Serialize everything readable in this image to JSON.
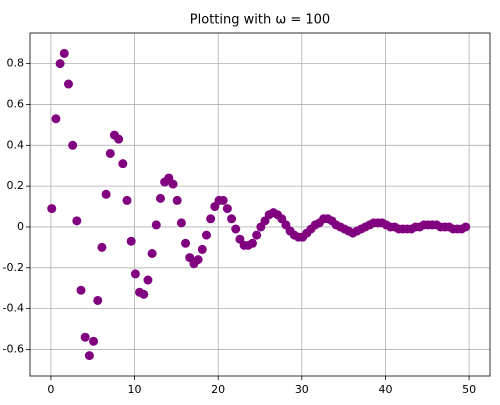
{
  "chart_data": {
    "type": "scatter",
    "title": "Plotting with ω = 100",
    "x": [
      0.1,
      0.6,
      1.1,
      1.6,
      2.1,
      2.6,
      3.1,
      3.6,
      4.1,
      4.6,
      5.1,
      5.6,
      6.1,
      6.6,
      7.1,
      7.6,
      8.1,
      8.6,
      9.1,
      9.6,
      10.1,
      10.6,
      11.1,
      11.6,
      12.1,
      12.6,
      13.1,
      13.6,
      14.1,
      14.6,
      15.1,
      15.6,
      16.1,
      16.6,
      17.1,
      17.6,
      18.1,
      18.6,
      19.1,
      19.6,
      20.1,
      20.6,
      21.1,
      21.6,
      22.1,
      22.6,
      23.1,
      23.6,
      24.1,
      24.6,
      25.1,
      25.6,
      26.1,
      26.6,
      27.1,
      27.6,
      28.1,
      28.6,
      29.1,
      29.6,
      30.1,
      30.6,
      31.1,
      31.6,
      32.1,
      32.6,
      33.1,
      33.6,
      34.1,
      34.6,
      35.1,
      35.6,
      36.1,
      36.6,
      37.1,
      37.6,
      38.1,
      38.6,
      39.1,
      39.6,
      40.1,
      40.6,
      41.1,
      41.6,
      42.1,
      42.6,
      43.1,
      43.6,
      44.1,
      44.6,
      45.1,
      45.6,
      46.1,
      46.6,
      47.1,
      47.6,
      48.1,
      48.6,
      49.1,
      49.6
    ],
    "values": [
      0.09,
      0.53,
      0.8,
      0.85,
      0.7,
      0.4,
      0.03,
      -0.31,
      -0.54,
      -0.63,
      -0.56,
      -0.36,
      -0.1,
      0.16,
      0.36,
      0.45,
      0.43,
      0.31,
      0.13,
      -0.07,
      -0.23,
      -0.32,
      -0.33,
      -0.26,
      -0.13,
      0.01,
      0.14,
      0.22,
      0.24,
      0.21,
      0.13,
      0.02,
      -0.08,
      -0.15,
      -0.18,
      -0.16,
      -0.11,
      -0.04,
      0.04,
      0.1,
      0.13,
      0.13,
      0.09,
      0.04,
      -0.01,
      -0.06,
      -0.09,
      -0.09,
      -0.08,
      -0.04,
      0,
      0.03,
      0.06,
      0.07,
      0.06,
      0.04,
      0.01,
      -0.02,
      -0.04,
      -0.05,
      -0.05,
      -0.03,
      -0.01,
      0.01,
      0.02,
      0.04,
      0.04,
      0.03,
      0.01,
      0,
      -0.01,
      -0.02,
      -0.03,
      -0.02,
      -0.01,
      0,
      0.01,
      0.02,
      0.02,
      0.02,
      0.01,
      0,
      0,
      -0.01,
      -0.01,
      -0.01,
      -0.01,
      0,
      0,
      0.01,
      0.01,
      0.01,
      0.01,
      0,
      0,
      0,
      -0.01,
      -0.01,
      -0.01,
      0
    ],
    "color": "#800080",
    "xlim": [
      -2.5,
      52.5
    ],
    "xticks": [
      0,
      10,
      20,
      30,
      40,
      50
    ],
    "ylim": [
      -0.73,
      0.95
    ],
    "yticks": [
      -0.6,
      -0.4,
      -0.2,
      0.0,
      0.2,
      0.4,
      0.6,
      0.8
    ],
    "grid": true
  }
}
